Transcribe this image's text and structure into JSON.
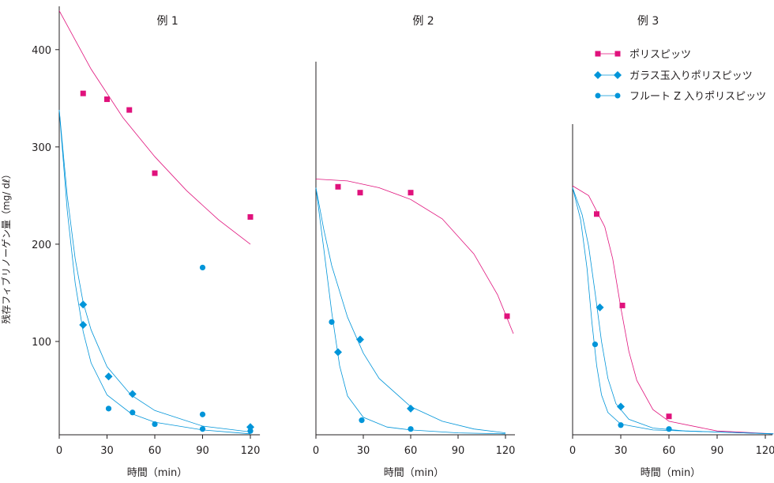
{
  "chart_data": {
    "type": "scatter",
    "ylabel": "残存フィブリノーゲン量（mg/ dℓ）",
    "xlabel": "時間（min）",
    "y_ticks": [
      "100",
      "200",
      "300",
      "400"
    ],
    "x_ticks": [
      "0",
      "30",
      "60",
      "90",
      "120"
    ],
    "legend": [
      {
        "name": "ポリスピッツ",
        "color": "#e0127c",
        "marker": "square"
      },
      {
        "name": "ガラス玉入りポリスピッツ",
        "color": "#0095d9",
        "marker": "diamond"
      },
      {
        "name": "フルート Z 入りポリスピッツ",
        "color": "#0095d9",
        "marker": "circle"
      }
    ],
    "panels": [
      {
        "title": "例 1",
        "series": [
          {
            "name": "ポリスピッツ",
            "points": [
              [
                15,
                355
              ],
              [
                30,
                349
              ],
              [
                44,
                338
              ],
              [
                60,
                273
              ],
              [
                120,
                228
              ]
            ]
          },
          {
            "name": "ガラス玉入りポリスピッツ",
            "points": [
              [
                15,
                138
              ],
              [
                15,
                117
              ],
              [
                31,
                64
              ],
              [
                46,
                46
              ],
              [
                120,
                12
              ]
            ]
          },
          {
            "name": "フルート Z 入りポリスピッツ",
            "points": [
              [
                31,
                31
              ],
              [
                46,
                27
              ],
              [
                60,
                15
              ],
              [
                90,
                176
              ],
              [
                90,
                25
              ],
              [
                90,
                10
              ],
              [
                120,
                8
              ]
            ]
          }
        ],
        "curves": [
          {
            "name": "ポリスピッツ",
            "points": [
              [
                0,
                440
              ],
              [
                20,
                380
              ],
              [
                40,
                330
              ],
              [
                60,
                290
              ],
              [
                80,
                255
              ],
              [
                100,
                225
              ],
              [
                120,
                200
              ]
            ]
          },
          {
            "name": "ガラス玉入りポリスピッツ",
            "points": [
              [
                0,
                338
              ],
              [
                5,
                250
              ],
              [
                10,
                185
              ],
              [
                15,
                140
              ],
              [
                20,
                112
              ],
              [
                30,
                74
              ],
              [
                45,
                45
              ],
              [
                60,
                29
              ],
              [
                90,
                13
              ],
              [
                120,
                7
              ]
            ]
          },
          {
            "name": "フルート Z 入りポリスピッツ",
            "points": [
              [
                0,
                338
              ],
              [
                5,
                235
              ],
              [
                10,
                160
              ],
              [
                15,
                110
              ],
              [
                20,
                78
              ],
              [
                30,
                45
              ],
              [
                45,
                26
              ],
              [
                60,
                17
              ],
              [
                90,
                9
              ],
              [
                120,
                5
              ]
            ]
          }
        ]
      },
      {
        "title": "例 2",
        "series": [
          {
            "name": "ポリスピッツ",
            "points": [
              [
                14,
                259
              ],
              [
                28,
                253
              ],
              [
                60,
                253
              ],
              [
                121,
                126
              ]
            ]
          },
          {
            "name": "ガラス玉入りポリスピッツ",
            "points": [
              [
                14,
                89
              ],
              [
                28,
                102
              ],
              [
                60,
                31
              ]
            ]
          },
          {
            "name": "フルート Z 入りポリスピッツ",
            "points": [
              [
                10,
                120
              ],
              [
                29,
                19
              ],
              [
                60,
                10
              ]
            ]
          }
        ],
        "curves": [
          {
            "name": "ポリスピッツ",
            "points": [
              [
                0,
                267
              ],
              [
                20,
                265
              ],
              [
                40,
                258
              ],
              [
                60,
                246
              ],
              [
                80,
                226
              ],
              [
                100,
                190
              ],
              [
                115,
                148
              ],
              [
                125,
                108
              ]
            ]
          },
          {
            "name": "ガラス玉入りポリスピッツ",
            "points": [
              [
                0,
                258
              ],
              [
                5,
                215
              ],
              [
                10,
                178
              ],
              [
                20,
                125
              ],
              [
                30,
                88
              ],
              [
                40,
                62
              ],
              [
                60,
                33
              ],
              [
                80,
                18
              ],
              [
                100,
                10
              ],
              [
                120,
                6
              ]
            ]
          },
          {
            "name": "フルート Z 入りポリスピッツ",
            "points": [
              [
                0,
                258
              ],
              [
                5,
                195
              ],
              [
                10,
                130
              ],
              [
                15,
                75
              ],
              [
                20,
                44
              ],
              [
                30,
                22
              ],
              [
                45,
                12
              ],
              [
                60,
                9
              ],
              [
                90,
                6
              ],
              [
                120,
                5
              ]
            ]
          }
        ]
      },
      {
        "title": "例 3",
        "series": [
          {
            "name": "ポリスピッツ",
            "points": [
              [
                15,
                231
              ],
              [
                31,
                137
              ],
              [
                60,
                23
              ]
            ]
          },
          {
            "name": "ガラス玉入りポリスピッツ",
            "points": [
              [
                17,
                135
              ],
              [
                30,
                33
              ]
            ]
          },
          {
            "name": "フルート Z 入りポリスピッツ",
            "points": [
              [
                14,
                97
              ],
              [
                30,
                14
              ],
              [
                60,
                10
              ]
            ]
          }
        ],
        "curves": [
          {
            "name": "ポリスピッツ",
            "points": [
              [
                0,
                260
              ],
              [
                10,
                250
              ],
              [
                20,
                218
              ],
              [
                25,
                185
              ],
              [
                30,
                135
              ],
              [
                35,
                90
              ],
              [
                40,
                60
              ],
              [
                50,
                30
              ],
              [
                60,
                18
              ],
              [
                90,
                8
              ],
              [
                125,
                5
              ]
            ]
          },
          {
            "name": "ガラス玉入りポリスピッツ",
            "points": [
              [
                0,
                258
              ],
              [
                6,
                230
              ],
              [
                10,
                198
              ],
              [
                14,
                150
              ],
              [
                18,
                100
              ],
              [
                22,
                62
              ],
              [
                27,
                36
              ],
              [
                35,
                20
              ],
              [
                50,
                11
              ],
              [
                70,
                8
              ],
              [
                125,
                5
              ]
            ]
          },
          {
            "name": "フルート Z 入りポリスピッツ",
            "points": [
              [
                0,
                258
              ],
              [
                5,
                225
              ],
              [
                9,
                175
              ],
              [
                12,
                120
              ],
              [
                15,
                75
              ],
              [
                18,
                45
              ],
              [
                22,
                27
              ],
              [
                30,
                15
              ],
              [
                50,
                9
              ],
              [
                125,
                5
              ]
            ]
          }
        ]
      }
    ]
  }
}
